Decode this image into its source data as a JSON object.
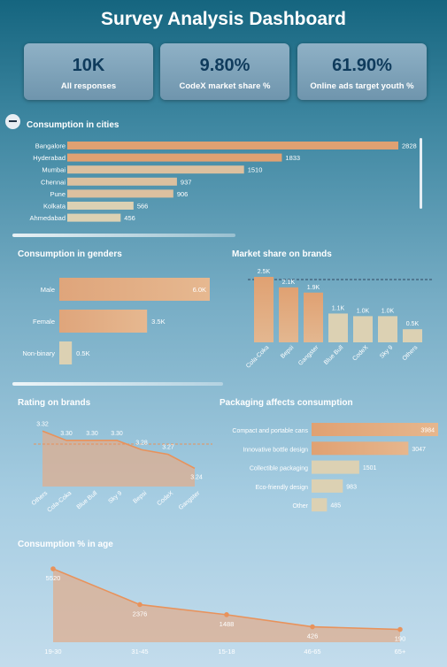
{
  "title": "Survey Analysis Dashboard",
  "kpis": [
    {
      "value": "10K",
      "label": "All responses"
    },
    {
      "value": "9.80%",
      "label": "CodeX market share %"
    },
    {
      "value": "61.90%",
      "label": "Online ads target youth %"
    }
  ],
  "colors": {
    "bar": "#e0a172",
    "bar_light": "#dcd1b3",
    "line": "#e8925b",
    "area": "#dfad8f"
  },
  "chart_data": [
    {
      "type": "bar",
      "orientation": "horizontal",
      "title": "Consumption in cities",
      "categories": [
        "Bangalore",
        "Hyderabad",
        "Mumbai",
        "Chennai",
        "Pune",
        "Kolkata",
        "Ahmedabad"
      ],
      "values": [
        2828,
        1833,
        1510,
        937,
        906,
        566,
        456
      ],
      "labels": [
        "2828",
        "1833",
        "1510",
        "937",
        "906",
        "566",
        "456"
      ],
      "xlim": [
        0,
        2828
      ]
    },
    {
      "type": "bar",
      "orientation": "horizontal",
      "title": "Consumption in genders",
      "categories": [
        "Male",
        "Female",
        "Non-binary"
      ],
      "values": [
        6000,
        3500,
        500
      ],
      "labels": [
        "6.0K",
        "3.5K",
        "0.5K"
      ],
      "xlim": [
        0,
        6000
      ]
    },
    {
      "type": "bar",
      "title": "Market share on brands",
      "categories": [
        "Cola-Coka",
        "Bepsi",
        "Gangster",
        "Blue Bull",
        "CodeX",
        "Sky 9",
        "Others"
      ],
      "values": [
        2500,
        2100,
        1900,
        1100,
        1000,
        1000,
        500
      ],
      "labels": [
        "2.5K",
        "2.1K",
        "1.9K",
        "1.1K",
        "1.0K",
        "1.0K",
        "0.5K"
      ],
      "reference_line": "dashed",
      "ylim": [
        0,
        2500
      ]
    },
    {
      "type": "area",
      "title": "Rating on brands",
      "categories": [
        "Others",
        "Cola-Coka",
        "Blue Bull",
        "Sky 9",
        "Bepsi",
        "CodeX",
        "Gangster"
      ],
      "values": [
        3.32,
        3.3,
        3.3,
        3.3,
        3.28,
        3.27,
        3.24
      ],
      "labels": [
        "3.32",
        "3.30",
        "3.30",
        "3.30",
        "3.28",
        "3.27",
        "3.24"
      ],
      "reference_line": "dashed",
      "ylim": [
        3.22,
        3.33
      ]
    },
    {
      "type": "bar",
      "orientation": "horizontal",
      "title": "Packaging affects consumption",
      "categories": [
        "Compact and portable cans",
        "Innovative bottle design",
        "Collectible packaging",
        "Eco-friendly design",
        "Other"
      ],
      "values": [
        3984,
        3047,
        1501,
        983,
        485
      ],
      "labels": [
        "3984",
        "3047",
        "1501",
        "983",
        "485"
      ],
      "xlim": [
        0,
        3984
      ]
    },
    {
      "type": "area",
      "title": "Consumption % in age",
      "categories": [
        "19-30",
        "31-45",
        "15-18",
        "46-65",
        "65+"
      ],
      "values": [
        5520,
        2376,
        1488,
        426,
        190
      ],
      "labels": [
        "5520",
        "2376",
        "1488",
        "426",
        "190"
      ],
      "ylim": [
        0,
        5520
      ]
    }
  ]
}
